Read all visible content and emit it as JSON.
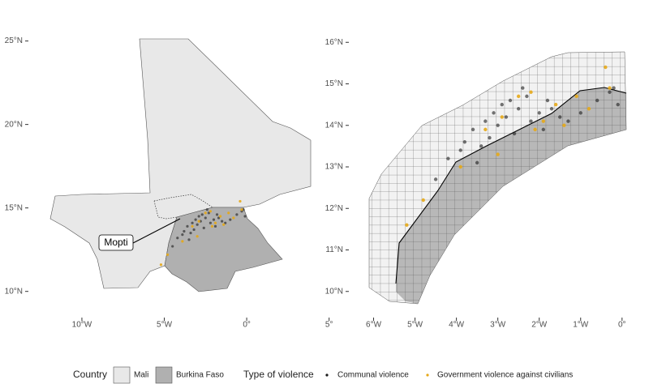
{
  "chart_data": [
    {
      "type": "map",
      "xlim": [
        -13,
        6
      ],
      "ylim": [
        9.5,
        26
      ],
      "xticks": [
        {
          "value": -10,
          "label": "10°W"
        },
        {
          "value": -5,
          "label": "5°W"
        },
        {
          "value": 0,
          "label": "0°"
        },
        {
          "value": 5,
          "label": "5°"
        }
      ],
      "yticks": [
        {
          "value": 25,
          "label": "25°N"
        },
        {
          "value": 20,
          "label": "20°N"
        },
        {
          "value": 15,
          "label": "15°N"
        },
        {
          "value": 10,
          "label": "10°N"
        }
      ],
      "annotation": "Mopti"
    },
    {
      "type": "map",
      "xlim": [
        -6.5,
        0.2
      ],
      "ylim": [
        9.8,
        16.2
      ],
      "xticks": [
        {
          "value": -6,
          "label": "6°W"
        },
        {
          "value": -5,
          "label": "5°W"
        },
        {
          "value": -4,
          "label": "4°W"
        },
        {
          "value": -3,
          "label": "3°W"
        },
        {
          "value": -2,
          "label": "2°W"
        },
        {
          "value": -1,
          "label": "1°W"
        },
        {
          "value": 0,
          "label": "0°"
        }
      ],
      "yticks": [
        {
          "value": 16,
          "label": "16°N"
        },
        {
          "value": 15,
          "label": "15°N"
        },
        {
          "value": 14,
          "label": "14°N"
        },
        {
          "value": 13,
          "label": "13°N"
        },
        {
          "value": 12,
          "label": "12°N"
        },
        {
          "value": 11,
          "label": "11°N"
        },
        {
          "value": 10,
          "label": "10°N"
        }
      ]
    }
  ],
  "legend": {
    "country_title": "Country",
    "countries": [
      {
        "name": "Mali",
        "color": "#e8e8e8"
      },
      {
        "name": "Burkina Faso",
        "color": "#b0b0b0"
      }
    ],
    "type_title": "Type of violence"
  },
  "series": [
    {
      "name": "Communal violence",
      "color": "#1a1a1a",
      "x": [
        -4.2,
        -3.9,
        -3.8,
        -3.6,
        -3.4,
        -3.3,
        -3.1,
        -3.0,
        -2.9,
        -2.8,
        -2.7,
        -2.6,
        -2.5,
        -2.3,
        -2.2,
        -2.0,
        -1.9,
        -1.7,
        -1.5,
        -1.3,
        -1.0,
        -0.6,
        -0.3,
        -0.1,
        -4.5,
        -3.5,
        -2.4,
        -1.8,
        -3.2,
        -0.2
      ],
      "values": [
        13.2,
        13.4,
        13.6,
        13.9,
        13.5,
        14.1,
        14.3,
        14.0,
        14.5,
        14.2,
        14.6,
        13.8,
        14.4,
        14.7,
        14.1,
        14.3,
        13.9,
        14.4,
        14.2,
        14.1,
        14.3,
        14.6,
        14.8,
        14.5,
        12.7,
        13.1,
        14.9,
        14.6,
        13.7,
        14.9
      ]
    },
    {
      "name": "Government violence against civilians",
      "color": "#e6a817",
      "x": [
        -5.2,
        -4.8,
        -3.9,
        -3.3,
        -2.9,
        -2.5,
        -2.1,
        -1.9,
        -1.6,
        -1.4,
        -1.1,
        -0.8,
        -0.4,
        -2.2,
        -3.0,
        -0.3
      ],
      "values": [
        11.6,
        12.2,
        13.0,
        13.9,
        14.2,
        14.7,
        13.9,
        14.1,
        14.5,
        14.0,
        14.7,
        14.4,
        15.4,
        14.8,
        13.3,
        14.9
      ]
    }
  ]
}
